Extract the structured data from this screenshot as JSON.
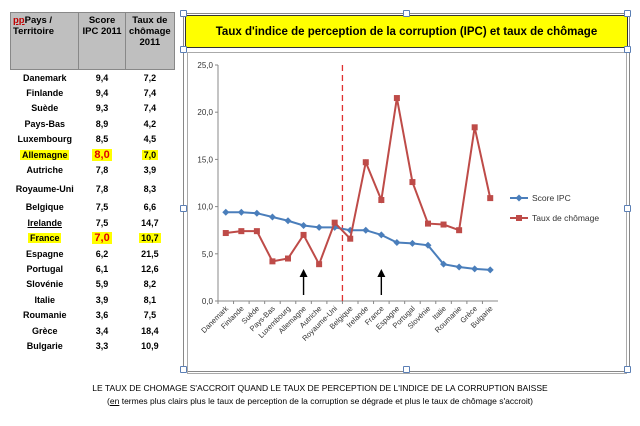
{
  "table": {
    "headers": [
      "ppPays / Territoire",
      "Score IPC 2011",
      "Taux de chômage 2011"
    ],
    "header_prefix": "pp",
    "header_first_rest": "Pays / Territoire",
    "rows": [
      {
        "country": "Danemark",
        "ipc": "9,4",
        "chomage": "7,2"
      },
      {
        "country": "Finlande",
        "ipc": "9,4",
        "chomage": "7,4"
      },
      {
        "country": "Suède",
        "ipc": "9,3",
        "chomage": "7,4"
      },
      {
        "country": "Pays-Bas",
        "ipc": "8,9",
        "chomage": "4,2"
      },
      {
        "country": "Luxembourg",
        "ipc": "8,5",
        "chomage": "4,5"
      },
      {
        "country": "Allemagne",
        "ipc": "8,0",
        "chomage": "7,0"
      },
      {
        "country": "Autriche",
        "ipc": "7,8",
        "chomage": "3,9"
      },
      {
        "country": "Royaume-Uni",
        "ipc": "7,8",
        "chomage": "8,3"
      },
      {
        "country": "Belgique",
        "ipc": "7,5",
        "chomage": "6,6"
      },
      {
        "country": "Irelande",
        "ipc": "7,5",
        "chomage": "14,7"
      },
      {
        "country": "France",
        "ipc": "7,0",
        "chomage": "10,7"
      },
      {
        "country": "Espagne",
        "ipc": "6,2",
        "chomage": "21,5"
      },
      {
        "country": "Portugal",
        "ipc": "6,1",
        "chomage": "12,6"
      },
      {
        "country": "Slovénie",
        "ipc": "5,9",
        "chomage": "8,2"
      },
      {
        "country": "Italie",
        "ipc": "3,9",
        "chomage": "8,1"
      },
      {
        "country": "Roumanie",
        "ipc": "3,6",
        "chomage": "7,5"
      },
      {
        "country": "Grèce",
        "ipc": "3,4",
        "chomage": "18,4"
      },
      {
        "country": "Bulgarie",
        "ipc": "3,3",
        "chomage": "10,9"
      }
    ]
  },
  "chart_data": {
    "type": "line",
    "title": "Taux d'indice de perception de la corruption (IPC) et taux de chômage",
    "categories": [
      "Danemark",
      "Finlande",
      "Suède",
      "Pays-Bas",
      "Luxembourg",
      "Allemagne",
      "Autriche",
      "Royaume-Uni",
      "Belgique",
      "Irelande",
      "France",
      "Espagne",
      "Portugal",
      "Slovénie",
      "Italie",
      "Roumanie",
      "Grèce",
      "Bulgarie"
    ],
    "series": [
      {
        "name": "Score IPC",
        "color": "#4a7ebb",
        "marker": "diamond",
        "values": [
          9.4,
          9.4,
          9.3,
          8.9,
          8.5,
          8.0,
          7.8,
          7.8,
          7.5,
          7.5,
          7.0,
          6.2,
          6.1,
          5.9,
          3.9,
          3.6,
          3.4,
          3.3
        ]
      },
      {
        "name": "Taux de chômage",
        "color": "#be4b48",
        "marker": "square",
        "values": [
          7.2,
          7.4,
          7.4,
          4.2,
          4.5,
          7.0,
          3.9,
          8.3,
          6.6,
          14.7,
          10.7,
          21.5,
          12.6,
          8.2,
          8.1,
          7.5,
          18.4,
          10.9
        ]
      }
    ],
    "ylim": [
      0,
      25
    ],
    "yticks": [
      "0,0",
      "5,0",
      "10,0",
      "15,0",
      "20,0",
      "25,0"
    ],
    "xlabel": "",
    "ylabel": "",
    "legend_position": "right",
    "grid": false,
    "separator_line_after": "Royaume-Uni",
    "arrows_at": [
      "Allemagne",
      "France"
    ]
  },
  "footer": {
    "line1": "LE TAUX DE CHOMAGE S'ACCROIT QUAND LE TAUX DE PERCEPTION DE L'INDICE DE LA CORRUPTION BAISSE",
    "line2_prefix": "(",
    "line2_underlined": "en",
    "line2_rest": " termes plus clairs plus le taux de perception de la corruption se dégrade et plus le taux de chômage s'accroit)"
  }
}
